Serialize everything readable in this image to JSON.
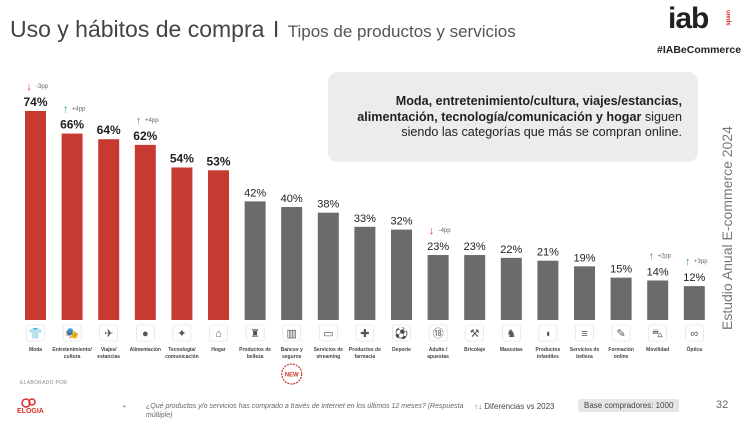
{
  "header": {
    "title": "Uso y hábitos de compra",
    "separator": "I",
    "subtitle": "Tipos de productos y servicios"
  },
  "brand": {
    "logo": "iab",
    "logo_sub": "spain",
    "hashtag": "#IABeCommerce"
  },
  "side_label": "Estudio Anual E-commerce 2024",
  "callout": {
    "bold_text": "Moda, entretenimiento/cultura, viajes/estancias, alimentación, tecnología/comunicación y hogar",
    "normal_text": "siguen siendo las categorías que más se compran online."
  },
  "colors": {
    "top_bar": "#c73a31",
    "other_bar": "#6b6b6b",
    "up": "#3aa655",
    "down": "#d7312a"
  },
  "new_badge": "NEW",
  "chart_data": {
    "type": "bar",
    "title": "Tipos de productos y servicios",
    "ylim": [
      0,
      74
    ],
    "unit": "%",
    "categories": [
      {
        "label": "Moda",
        "value": 74,
        "change": "-3pp",
        "dir": "down",
        "icon": "tshirt-icon",
        "top": true
      },
      {
        "label": "Entretenimiento/ cultura",
        "value": 66,
        "change": "+4pp",
        "dir": "up",
        "icon": "theater-masks-icon",
        "top": true
      },
      {
        "label": "Viajes/ estancias",
        "value": 64,
        "change": "",
        "dir": "",
        "icon": "airplane-icon",
        "top": true
      },
      {
        "label": "Alimentación",
        "value": 62,
        "change": "+4pp",
        "dir": "up",
        "icon": "apple-icon",
        "top": true
      },
      {
        "label": "Tecnología/ comunicación",
        "value": 54,
        "change": "",
        "dir": "",
        "icon": "satellite-icon",
        "top": true
      },
      {
        "label": "Hogar",
        "value": 53,
        "change": "",
        "dir": "",
        "icon": "home-icon",
        "top": true
      },
      {
        "label": "Productos de belleza",
        "value": 42,
        "change": "",
        "dir": "",
        "icon": "perfume-icon",
        "top": false
      },
      {
        "label": "Bancos y seguros",
        "value": 40,
        "change": "",
        "dir": "",
        "icon": "bank-icon",
        "top": false,
        "is_new": true
      },
      {
        "label": "Servicios de streaming",
        "value": 38,
        "change": "",
        "dir": "",
        "icon": "tv-icon",
        "top": false
      },
      {
        "label": "Productos de farmacia",
        "value": 33,
        "change": "",
        "dir": "",
        "icon": "pharmacy-cross-icon",
        "top": false
      },
      {
        "label": "Deporte",
        "value": 32,
        "change": "",
        "dir": "",
        "icon": "soccer-ball-icon",
        "top": false
      },
      {
        "label": "Adulto / apuestas",
        "value": 23,
        "change": "-4pp",
        "dir": "down",
        "icon": "adult-18-icon",
        "top": false
      },
      {
        "label": "Bricolaje",
        "value": 23,
        "change": "",
        "dir": "",
        "icon": "tools-icon",
        "top": false
      },
      {
        "label": "Mascotas",
        "value": 22,
        "change": "",
        "dir": "",
        "icon": "dog-icon",
        "top": false
      },
      {
        "label": "Productos infantiles",
        "value": 21,
        "change": "",
        "dir": "",
        "icon": "rubber-duck-icon",
        "top": false
      },
      {
        "label": "Servicios de belleza",
        "value": 19,
        "change": "",
        "dir": "",
        "icon": "comb-icon",
        "top": false
      },
      {
        "label": "Formación online",
        "value": 15,
        "change": "",
        "dir": "",
        "icon": "pencil-icon",
        "top": false
      },
      {
        "label": "Movilidad",
        "value": 14,
        "change": "+2pp",
        "dir": "up",
        "icon": "car-icon",
        "top": false
      },
      {
        "label": "Óptica",
        "value": 12,
        "change": "+3pp",
        "dir": "up",
        "icon": "glasses-icon",
        "top": false
      }
    ]
  },
  "footer": {
    "credit": "ELABORADO POR",
    "brand": "ELOGIA",
    "bullet": "•",
    "question": "¿Qué productos y/o servicios has comprado a través de internet en los últimos 12 meses? (Respuesta múltiple)",
    "diff_label": "Diferencias vs 2023",
    "base": "Base compradores: 1000",
    "page": "32"
  }
}
